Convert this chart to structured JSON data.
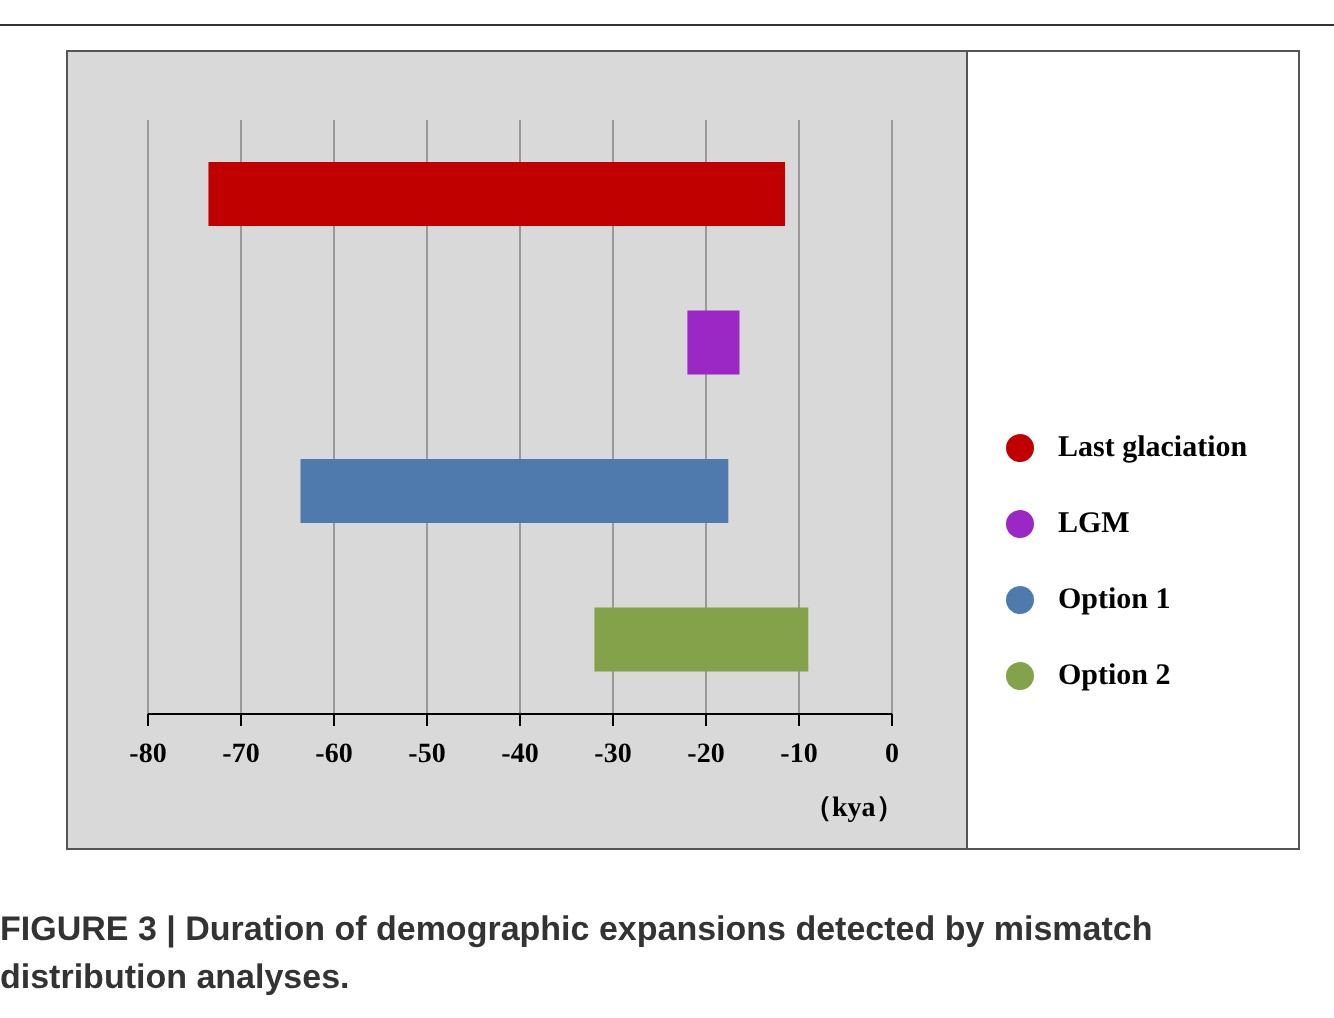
{
  "chart_data": {
    "type": "bar",
    "orientation": "horizontal",
    "title": "FIGURE 3 | Duration of demographic expansions detected by mismatch distribution analyses.",
    "xlabel": "（kya）",
    "categories": [
      null,
      null,
      null,
      null
    ],
    "series": [
      {
        "name": "Last glaciation",
        "color": "#c00000",
        "base": [
          -73.5,
          null,
          null,
          null
        ],
        "values": [
          62,
          null,
          null,
          null
        ]
      },
      {
        "name": "LGM",
        "color": "#9b27c4",
        "base": [
          null,
          -22,
          null,
          null
        ],
        "values": [
          null,
          5.6,
          null,
          null
        ]
      },
      {
        "name": "Option 1",
        "color": "#4f7aad",
        "base": [
          null,
          null,
          -63.6,
          null
        ],
        "values": [
          null,
          null,
          46,
          null
        ]
      },
      {
        "name": "Option 2",
        "color": "#83a24a",
        "base": [
          null,
          null,
          null,
          -32
        ],
        "values": [
          null,
          null,
          null,
          23
        ]
      }
    ],
    "xlim": [
      -80,
      0
    ],
    "xticks": [
      -80,
      -70,
      -60,
      -50,
      -40,
      -30,
      -20,
      -10,
      0
    ],
    "grid": "x",
    "legend": "right",
    "tick_labels": "x"
  }
}
